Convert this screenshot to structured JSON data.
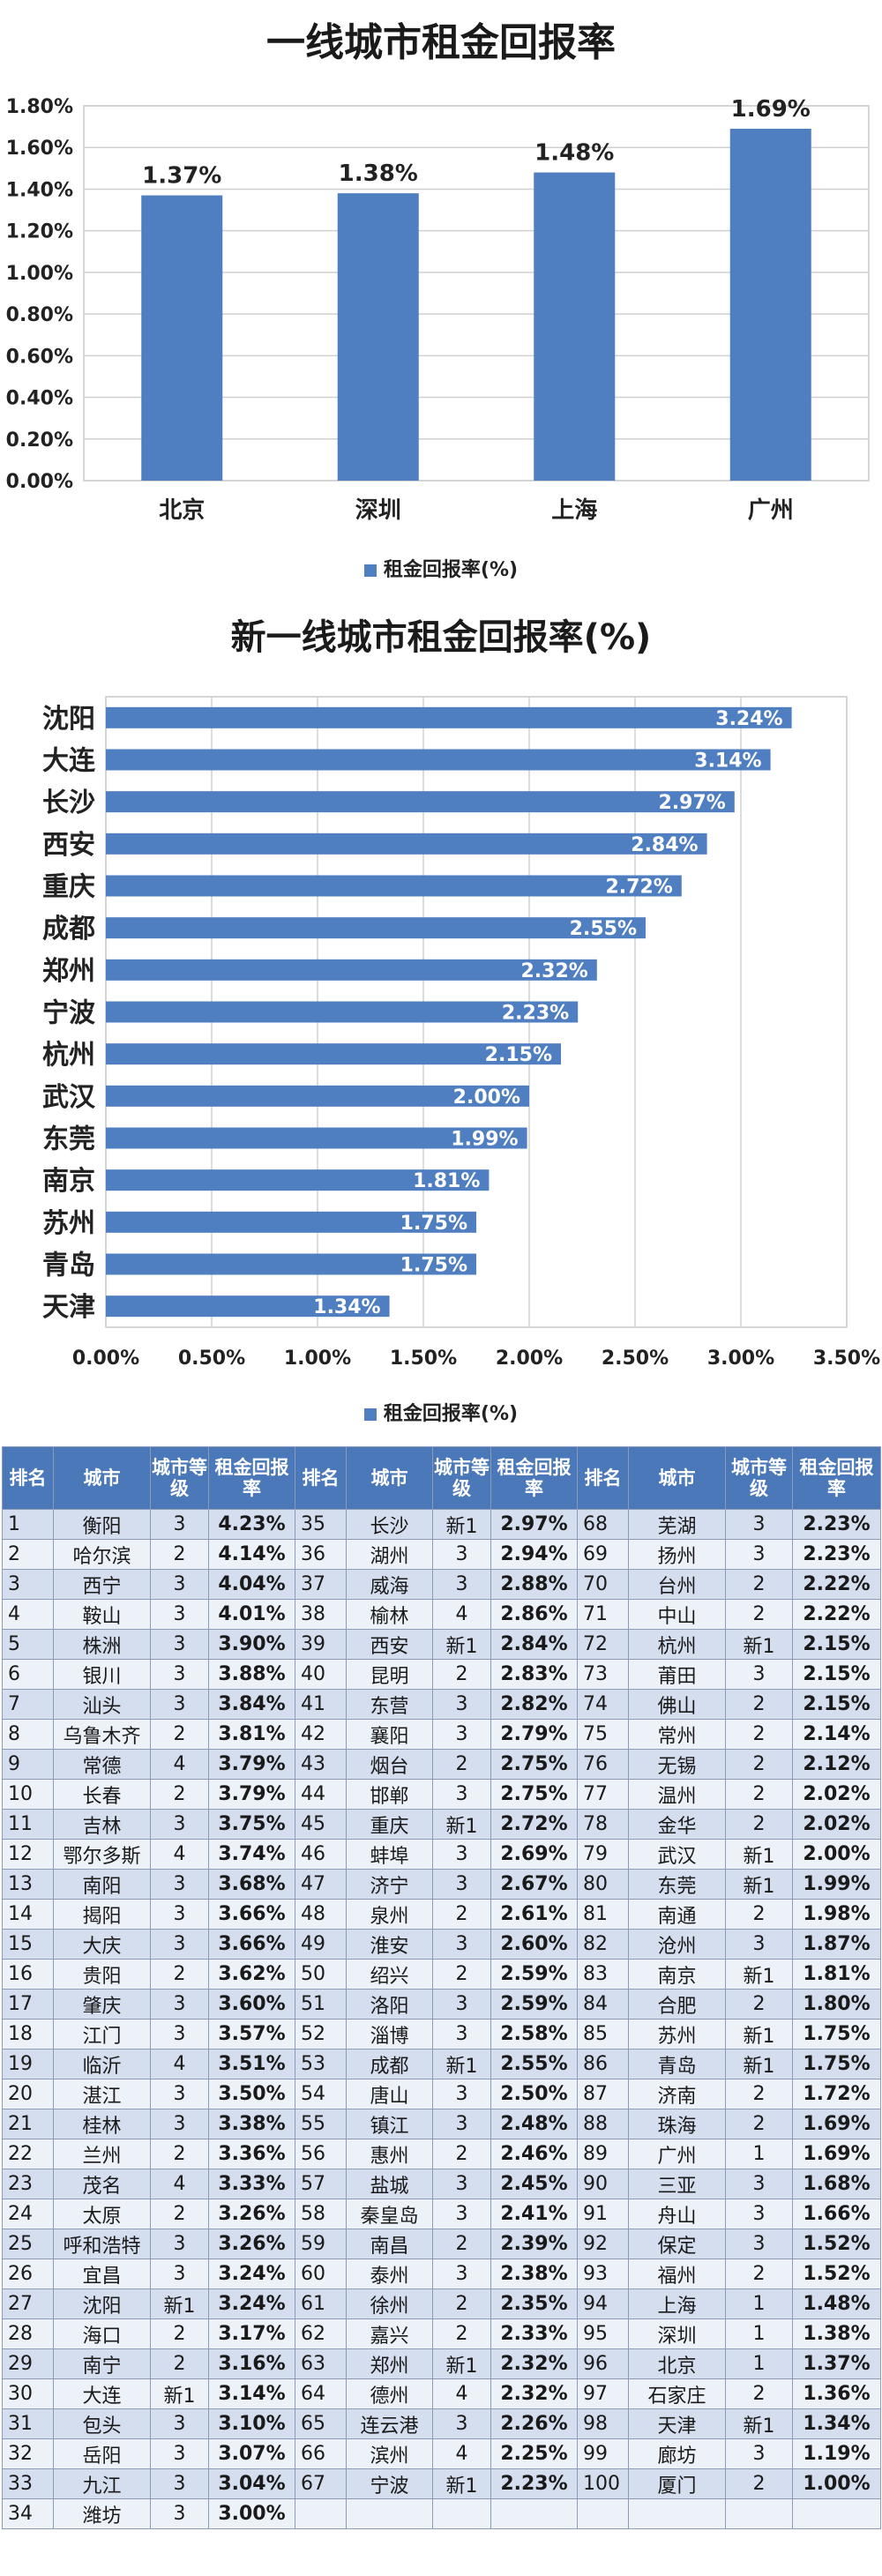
{
  "chart_data": [
    {
      "type": "bar",
      "title": "一线城市租金回报率",
      "categories": [
        "北京",
        "深圳",
        "上海",
        "广州"
      ],
      "values": [
        1.37,
        1.38,
        1.48,
        1.69
      ],
      "value_labels": [
        "1.37%",
        "1.38%",
        "1.48%",
        "1.69%"
      ],
      "yticks": [
        "0.00%",
        "0.20%",
        "0.40%",
        "0.60%",
        "0.80%",
        "1.00%",
        "1.20%",
        "1.40%",
        "1.60%",
        "1.80%"
      ],
      "ylim": [
        0,
        1.8
      ],
      "legend": "租金回报率(%)",
      "legend_position": "bottom",
      "grid": true,
      "bar_color": "#4f7fc0"
    },
    {
      "type": "bar",
      "orientation": "horizontal",
      "title": "新一线城市租金回报率(%)",
      "categories": [
        "沈阳",
        "大连",
        "长沙",
        "西安",
        "重庆",
        "成都",
        "郑州",
        "宁波",
        "杭州",
        "武汉",
        "东莞",
        "南京",
        "苏州",
        "青岛",
        "天津"
      ],
      "values": [
        3.24,
        3.14,
        2.97,
        2.84,
        2.72,
        2.55,
        2.32,
        2.23,
        2.15,
        2.0,
        1.99,
        1.81,
        1.75,
        1.75,
        1.34
      ],
      "value_labels": [
        "3.24%",
        "3.14%",
        "2.97%",
        "2.84%",
        "2.72%",
        "2.55%",
        "2.32%",
        "2.23%",
        "2.15%",
        "2.00%",
        "1.99%",
        "1.81%",
        "1.75%",
        "1.75%",
        "1.34%"
      ],
      "xticks": [
        "0.00%",
        "0.50%",
        "1.00%",
        "1.50%",
        "2.00%",
        "2.50%",
        "3.00%",
        "3.50%"
      ],
      "xlim": [
        0,
        3.5
      ],
      "legend": "租金回报率(%)",
      "legend_position": "bottom",
      "grid": true,
      "bar_color": "#4f7fc0"
    },
    {
      "type": "table",
      "headers": [
        "排名",
        "城市",
        "城市等级",
        "租金回报率",
        "排名",
        "城市",
        "城市等级",
        "租金回报率",
        "排名",
        "城市",
        "城市等级",
        "租金回报率"
      ],
      "rows": [
        [
          [
            "1",
            "衡阳",
            "3",
            "4.23%"
          ],
          [
            "35",
            "长沙",
            "新1",
            "2.97%"
          ],
          [
            "68",
            "芜湖",
            "3",
            "2.23%"
          ]
        ],
        [
          [
            "2",
            "哈尔滨",
            "2",
            "4.14%"
          ],
          [
            "36",
            "湖州",
            "3",
            "2.94%"
          ],
          [
            "69",
            "扬州",
            "3",
            "2.23%"
          ]
        ],
        [
          [
            "3",
            "西宁",
            "3",
            "4.04%"
          ],
          [
            "37",
            "威海",
            "3",
            "2.88%"
          ],
          [
            "70",
            "台州",
            "2",
            "2.22%"
          ]
        ],
        [
          [
            "4",
            "鞍山",
            "3",
            "4.01%"
          ],
          [
            "38",
            "榆林",
            "4",
            "2.86%"
          ],
          [
            "71",
            "中山",
            "2",
            "2.22%"
          ]
        ],
        [
          [
            "5",
            "株洲",
            "3",
            "3.90%"
          ],
          [
            "39",
            "西安",
            "新1",
            "2.84%"
          ],
          [
            "72",
            "杭州",
            "新1",
            "2.15%"
          ]
        ],
        [
          [
            "6",
            "银川",
            "3",
            "3.88%"
          ],
          [
            "40",
            "昆明",
            "2",
            "2.83%"
          ],
          [
            "73",
            "莆田",
            "3",
            "2.15%"
          ]
        ],
        [
          [
            "7",
            "汕头",
            "3",
            "3.84%"
          ],
          [
            "41",
            "东营",
            "3",
            "2.82%"
          ],
          [
            "74",
            "佛山",
            "2",
            "2.15%"
          ]
        ],
        [
          [
            "8",
            "乌鲁木齐",
            "2",
            "3.81%"
          ],
          [
            "42",
            "襄阳",
            "3",
            "2.79%"
          ],
          [
            "75",
            "常州",
            "2",
            "2.14%"
          ]
        ],
        [
          [
            "9",
            "常德",
            "4",
            "3.79%"
          ],
          [
            "43",
            "烟台",
            "2",
            "2.75%"
          ],
          [
            "76",
            "无锡",
            "2",
            "2.12%"
          ]
        ],
        [
          [
            "10",
            "长春",
            "2",
            "3.79%"
          ],
          [
            "44",
            "邯郸",
            "3",
            "2.75%"
          ],
          [
            "77",
            "温州",
            "2",
            "2.02%"
          ]
        ],
        [
          [
            "11",
            "吉林",
            "3",
            "3.75%"
          ],
          [
            "45",
            "重庆",
            "新1",
            "2.72%"
          ],
          [
            "78",
            "金华",
            "2",
            "2.02%"
          ]
        ],
        [
          [
            "12",
            "鄂尔多斯",
            "4",
            "3.74%"
          ],
          [
            "46",
            "蚌埠",
            "3",
            "2.69%"
          ],
          [
            "79",
            "武汉",
            "新1",
            "2.00%"
          ]
        ],
        [
          [
            "13",
            "南阳",
            "3",
            "3.68%"
          ],
          [
            "47",
            "济宁",
            "3",
            "2.67%"
          ],
          [
            "80",
            "东莞",
            "新1",
            "1.99%"
          ]
        ],
        [
          [
            "14",
            "揭阳",
            "3",
            "3.66%"
          ],
          [
            "48",
            "泉州",
            "2",
            "2.61%"
          ],
          [
            "81",
            "南通",
            "2",
            "1.98%"
          ]
        ],
        [
          [
            "15",
            "大庆",
            "3",
            "3.66%"
          ],
          [
            "49",
            "淮安",
            "3",
            "2.60%"
          ],
          [
            "82",
            "沧州",
            "3",
            "1.87%"
          ]
        ],
        [
          [
            "16",
            "贵阳",
            "2",
            "3.62%"
          ],
          [
            "50",
            "绍兴",
            "2",
            "2.59%"
          ],
          [
            "83",
            "南京",
            "新1",
            "1.81%"
          ]
        ],
        [
          [
            "17",
            "肇庆",
            "3",
            "3.60%"
          ],
          [
            "51",
            "洛阳",
            "3",
            "2.59%"
          ],
          [
            "84",
            "合肥",
            "2",
            "1.80%"
          ]
        ],
        [
          [
            "18",
            "江门",
            "3",
            "3.57%"
          ],
          [
            "52",
            "淄博",
            "3",
            "2.58%"
          ],
          [
            "85",
            "苏州",
            "新1",
            "1.75%"
          ]
        ],
        [
          [
            "19",
            "临沂",
            "4",
            "3.51%"
          ],
          [
            "53",
            "成都",
            "新1",
            "2.55%"
          ],
          [
            "86",
            "青岛",
            "新1",
            "1.75%"
          ]
        ],
        [
          [
            "20",
            "湛江",
            "3",
            "3.50%"
          ],
          [
            "54",
            "唐山",
            "3",
            "2.50%"
          ],
          [
            "87",
            "济南",
            "2",
            "1.72%"
          ]
        ],
        [
          [
            "21",
            "桂林",
            "3",
            "3.38%"
          ],
          [
            "55",
            "镇江",
            "3",
            "2.48%"
          ],
          [
            "88",
            "珠海",
            "2",
            "1.69%"
          ]
        ],
        [
          [
            "22",
            "兰州",
            "2",
            "3.36%"
          ],
          [
            "56",
            "惠州",
            "2",
            "2.46%"
          ],
          [
            "89",
            "广州",
            "1",
            "1.69%"
          ]
        ],
        [
          [
            "23",
            "茂名",
            "4",
            "3.33%"
          ],
          [
            "57",
            "盐城",
            "3",
            "2.45%"
          ],
          [
            "90",
            "三亚",
            "3",
            "1.68%"
          ]
        ],
        [
          [
            "24",
            "太原",
            "2",
            "3.26%"
          ],
          [
            "58",
            "秦皇岛",
            "3",
            "2.41%"
          ],
          [
            "91",
            "舟山",
            "3",
            "1.66%"
          ]
        ],
        [
          [
            "25",
            "呼和浩特",
            "3",
            "3.26%"
          ],
          [
            "59",
            "南昌",
            "2",
            "2.39%"
          ],
          [
            "92",
            "保定",
            "3",
            "1.52%"
          ]
        ],
        [
          [
            "26",
            "宜昌",
            "3",
            "3.24%"
          ],
          [
            "60",
            "泰州",
            "3",
            "2.38%"
          ],
          [
            "93",
            "福州",
            "2",
            "1.52%"
          ]
        ],
        [
          [
            "27",
            "沈阳",
            "新1",
            "3.24%"
          ],
          [
            "61",
            "徐州",
            "2",
            "2.35%"
          ],
          [
            "94",
            "上海",
            "1",
            "1.48%"
          ]
        ],
        [
          [
            "28",
            "海口",
            "2",
            "3.17%"
          ],
          [
            "62",
            "嘉兴",
            "2",
            "2.33%"
          ],
          [
            "95",
            "深圳",
            "1",
            "1.38%"
          ]
        ],
        [
          [
            "29",
            "南宁",
            "2",
            "3.16%"
          ],
          [
            "63",
            "郑州",
            "新1",
            "2.32%"
          ],
          [
            "96",
            "北京",
            "1",
            "1.37%"
          ]
        ],
        [
          [
            "30",
            "大连",
            "新1",
            "3.14%"
          ],
          [
            "64",
            "德州",
            "4",
            "2.32%"
          ],
          [
            "97",
            "石家庄",
            "2",
            "1.36%"
          ]
        ],
        [
          [
            "31",
            "包头",
            "3",
            "3.10%"
          ],
          [
            "65",
            "连云港",
            "3",
            "2.26%"
          ],
          [
            "98",
            "天津",
            "新1",
            "1.34%"
          ]
        ],
        [
          [
            "32",
            "岳阳",
            "3",
            "3.07%"
          ],
          [
            "66",
            "滨州",
            "4",
            "2.25%"
          ],
          [
            "99",
            "廊坊",
            "3",
            "1.19%"
          ]
        ],
        [
          [
            "33",
            "九江",
            "3",
            "3.04%"
          ],
          [
            "67",
            "宁波",
            "新1",
            "2.23%"
          ],
          [
            "100",
            "厦门",
            "2",
            "1.00%"
          ]
        ],
        [
          [
            "34",
            "潍坊",
            "3",
            "3.00%"
          ],
          [
            "",
            "",
            "",
            ""
          ],
          [
            "",
            "",
            "",
            ""
          ]
        ]
      ]
    }
  ]
}
